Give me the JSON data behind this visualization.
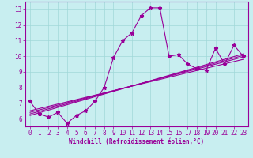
{
  "xlabel": "Windchill (Refroidissement éolien,°C)",
  "ylabel": "",
  "background_color": "#c8eef0",
  "line_color": "#990099",
  "xlim": [
    -0.5,
    23.5
  ],
  "ylim": [
    5.5,
    13.5
  ],
  "xticks": [
    0,
    1,
    2,
    3,
    4,
    5,
    6,
    7,
    8,
    9,
    10,
    11,
    12,
    13,
    14,
    15,
    16,
    17,
    18,
    19,
    20,
    21,
    22,
    23
  ],
  "yticks": [
    6,
    7,
    8,
    9,
    10,
    11,
    12,
    13
  ],
  "grid_color": "#a0d8d8",
  "series": [
    [
      0,
      7.1
    ],
    [
      1,
      6.3
    ],
    [
      2,
      6.1
    ],
    [
      3,
      6.4
    ],
    [
      4,
      5.7
    ],
    [
      5,
      6.2
    ],
    [
      6,
      6.5
    ],
    [
      7,
      7.1
    ],
    [
      8,
      8.0
    ],
    [
      9,
      9.9
    ],
    [
      10,
      11.0
    ],
    [
      11,
      11.5
    ],
    [
      12,
      12.6
    ],
    [
      13,
      13.1
    ],
    [
      14,
      13.1
    ],
    [
      15,
      10.0
    ],
    [
      16,
      10.1
    ],
    [
      17,
      9.5
    ],
    [
      18,
      9.2
    ],
    [
      19,
      9.1
    ],
    [
      20,
      10.5
    ],
    [
      21,
      9.5
    ],
    [
      22,
      10.7
    ],
    [
      23,
      10.0
    ]
  ],
  "regression_lines": [
    [
      [
        0,
        6.5
      ],
      [
        23,
        9.8
      ]
    ],
    [
      [
        0,
        6.4
      ],
      [
        23,
        9.95
      ]
    ],
    [
      [
        0,
        6.3
      ],
      [
        23,
        10.05
      ]
    ],
    [
      [
        0,
        6.2
      ],
      [
        23,
        10.15
      ]
    ]
  ],
  "font_size": 5.5,
  "tick_font_size": 5.5,
  "marker_size": 3.5,
  "line_width": 0.8
}
